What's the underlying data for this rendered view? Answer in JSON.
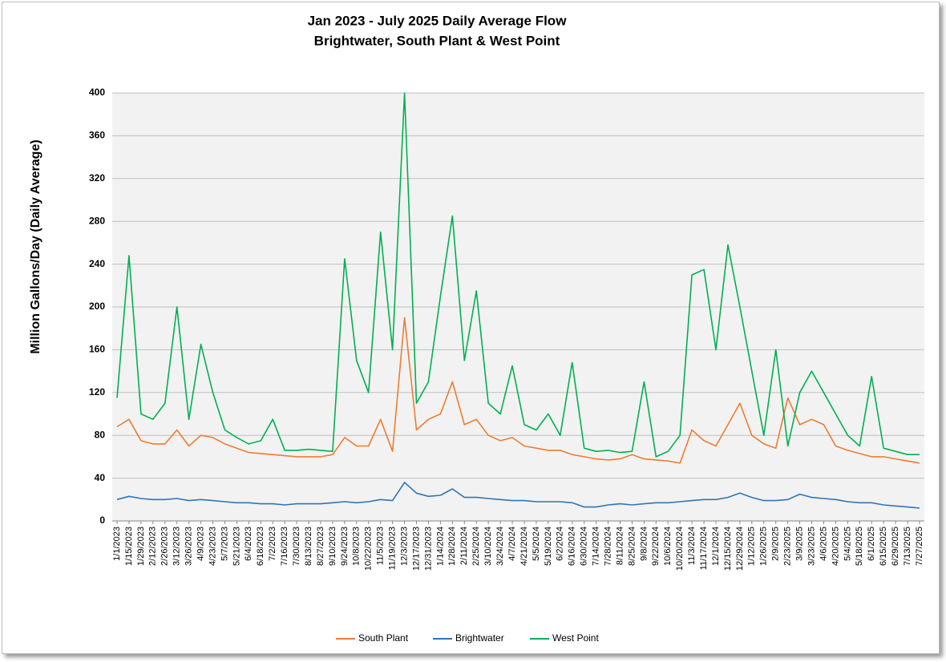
{
  "chart_data": {
    "type": "line",
    "title": "Jan 2023 - July 2025 Daily Average Flow",
    "subtitle": "Brightwater, South Plant & West Point",
    "y_label": "Million Gallons/Day (Daily Average)",
    "categories": [
      "1/1/2023",
      "1/15/2023",
      "1/29/2023",
      "2/12/2023",
      "2/26/2023",
      "3/12/2023",
      "3/26/2023",
      "4/9/2023",
      "4/23/2023",
      "5/7/2023",
      "5/21/2023",
      "6/4/2023",
      "6/18/2023",
      "7/2/2023",
      "7/16/2023",
      "7/30/2023",
      "8/13/2023",
      "8/27/2023",
      "9/10/2023",
      "9/24/2023",
      "10/8/2023",
      "10/22/2023",
      "11/5/2023",
      "11/19/2023",
      "12/3/2023",
      "12/17/2023",
      "12/31/2023",
      "1/14/2024",
      "1/28/2024",
      "2/11/2024",
      "2/25/2024",
      "3/10/2024",
      "3/24/2024",
      "4/7/2024",
      "4/21/2024",
      "5/5/2024",
      "5/19/2024",
      "6/2/2024",
      "6/16/2024",
      "6/30/2024",
      "7/14/2024",
      "7/28/2024",
      "8/11/2024",
      "8/25/2024",
      "9/8/2024",
      "9/22/2024",
      "10/6/2024",
      "10/20/2024",
      "11/3/2024",
      "11/17/2024",
      "12/1/2024",
      "12/15/2024",
      "12/29/2024",
      "1/12/2025",
      "1/26/2025",
      "2/9/2025",
      "2/23/2025",
      "3/9/2025",
      "3/23/2025",
      "4/6/2025",
      "4/20/2025",
      "5/4/2025",
      "5/18/2025",
      "6/1/2025",
      "6/15/2025",
      "6/29/2025",
      "7/13/2025",
      "7/27/2025"
    ],
    "series": [
      {
        "name": "South Plant",
        "color": "#ed7d31",
        "values": [
          88,
          95,
          75,
          72,
          72,
          85,
          70,
          80,
          78,
          72,
          68,
          64,
          63,
          62,
          61,
          60,
          60,
          60,
          62,
          78,
          70,
          70,
          95,
          65,
          190,
          85,
          95,
          100,
          130,
          90,
          95,
          80,
          75,
          78,
          70,
          68,
          66,
          66,
          62,
          60,
          58,
          57,
          58,
          62,
          58,
          57,
          56,
          54,
          85,
          75,
          70,
          90,
          110,
          80,
          72,
          68,
          115,
          90,
          95,
          90,
          70,
          66,
          63,
          60,
          60,
          58,
          56,
          54
        ]
      },
      {
        "name": "Brightwater",
        "color": "#2e75b6",
        "values": [
          20,
          23,
          21,
          20,
          20,
          21,
          19,
          20,
          19,
          18,
          17,
          17,
          16,
          16,
          15,
          16,
          16,
          16,
          17,
          18,
          17,
          18,
          20,
          19,
          36,
          26,
          23,
          24,
          30,
          22,
          22,
          21,
          20,
          19,
          19,
          18,
          18,
          18,
          17,
          13,
          13,
          15,
          16,
          15,
          16,
          17,
          17,
          18,
          19,
          20,
          20,
          22,
          26,
          22,
          19,
          19,
          20,
          25,
          22,
          21,
          20,
          18,
          17,
          17,
          15,
          14,
          13,
          12
        ]
      },
      {
        "name": "West Point",
        "color": "#00b050",
        "values": [
          115,
          248,
          100,
          95,
          110,
          200,
          95,
          165,
          120,
          85,
          78,
          72,
          75,
          95,
          66,
          66,
          67,
          66,
          65,
          245,
          150,
          120,
          270,
          160,
          400,
          110,
          130,
          210,
          285,
          150,
          215,
          110,
          100,
          145,
          90,
          85,
          100,
          80,
          148,
          68,
          65,
          66,
          64,
          65,
          130,
          60,
          65,
          80,
          230,
          235,
          160,
          258,
          200,
          140,
          80,
          160,
          70,
          120,
          140,
          120,
          100,
          80,
          70,
          135,
          68,
          65,
          62,
          62
        ]
      }
    ],
    "ylim": [
      0,
      400
    ],
    "yticks": [
      0,
      40,
      80,
      120,
      160,
      200,
      240,
      280,
      320,
      360,
      400
    ],
    "grid": true,
    "legend": "bottom"
  }
}
